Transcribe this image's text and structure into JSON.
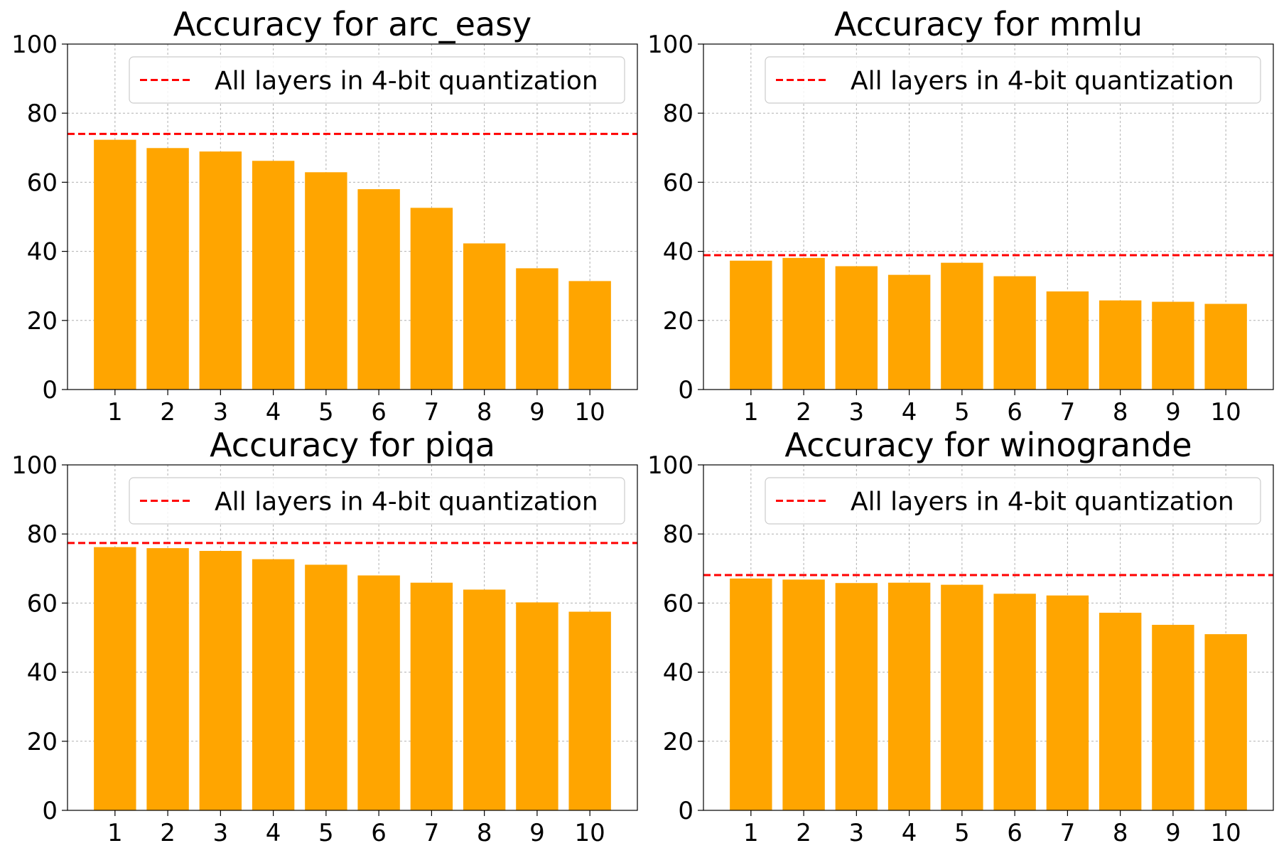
{
  "colors": {
    "bar": "#FFA500",
    "reference_line": "#FF0000",
    "grid": "#b0b0b0",
    "axis": "#000000"
  },
  "chart_data": [
    {
      "type": "bar",
      "title": "Accuracy for arc_easy",
      "categories": [
        "1",
        "2",
        "3",
        "4",
        "5",
        "6",
        "7",
        "8",
        "9",
        "10"
      ],
      "values": [
        72.3,
        69.9,
        68.9,
        66.2,
        62.9,
        58.0,
        52.6,
        42.3,
        35.1,
        31.4
      ],
      "reference_line": {
        "label": "All layers in 4-bit quantization",
        "value": 74.0,
        "style": "dashed"
      },
      "ylim": [
        0,
        100
      ],
      "yticks": [
        "0",
        "20",
        "40",
        "60",
        "80",
        "100"
      ],
      "grid": true,
      "legend_position": "top-right"
    },
    {
      "type": "bar",
      "title": "Accuracy for mmlu",
      "categories": [
        "1",
        "2",
        "3",
        "4",
        "5",
        "6",
        "7",
        "8",
        "9",
        "10"
      ],
      "values": [
        37.3,
        38.1,
        35.7,
        33.2,
        36.7,
        32.8,
        28.4,
        25.8,
        25.4,
        24.8
      ],
      "reference_line": {
        "label": "All layers in 4-bit quantization",
        "value": 38.9,
        "style": "dashed"
      },
      "ylim": [
        0,
        100
      ],
      "yticks": [
        "0",
        "20",
        "40",
        "60",
        "80",
        "100"
      ],
      "grid": true,
      "legend_position": "top-right"
    },
    {
      "type": "bar",
      "title": "Accuracy for piqa",
      "categories": [
        "1",
        "2",
        "3",
        "4",
        "5",
        "6",
        "7",
        "8",
        "9",
        "10"
      ],
      "values": [
        76.2,
        75.9,
        75.1,
        72.7,
        71.1,
        68.0,
        65.9,
        63.9,
        60.2,
        57.5
      ],
      "reference_line": {
        "label": "All layers in 4-bit quantization",
        "value": 77.4,
        "style": "dashed"
      },
      "ylim": [
        0,
        100
      ],
      "yticks": [
        "0",
        "20",
        "40",
        "60",
        "80",
        "100"
      ],
      "grid": true,
      "legend_position": "top-right"
    },
    {
      "type": "bar",
      "title": "Accuracy for winogrande",
      "categories": [
        "1",
        "2",
        "3",
        "4",
        "5",
        "6",
        "7",
        "8",
        "9",
        "10"
      ],
      "values": [
        67.1,
        66.8,
        65.8,
        65.9,
        65.3,
        62.7,
        62.2,
        57.2,
        53.7,
        51.0
      ],
      "reference_line": {
        "label": "All layers in 4-bit quantization",
        "value": 68.1,
        "style": "dashed"
      },
      "ylim": [
        0,
        100
      ],
      "yticks": [
        "0",
        "20",
        "40",
        "60",
        "80",
        "100"
      ],
      "grid": true,
      "legend_position": "top-right"
    }
  ]
}
